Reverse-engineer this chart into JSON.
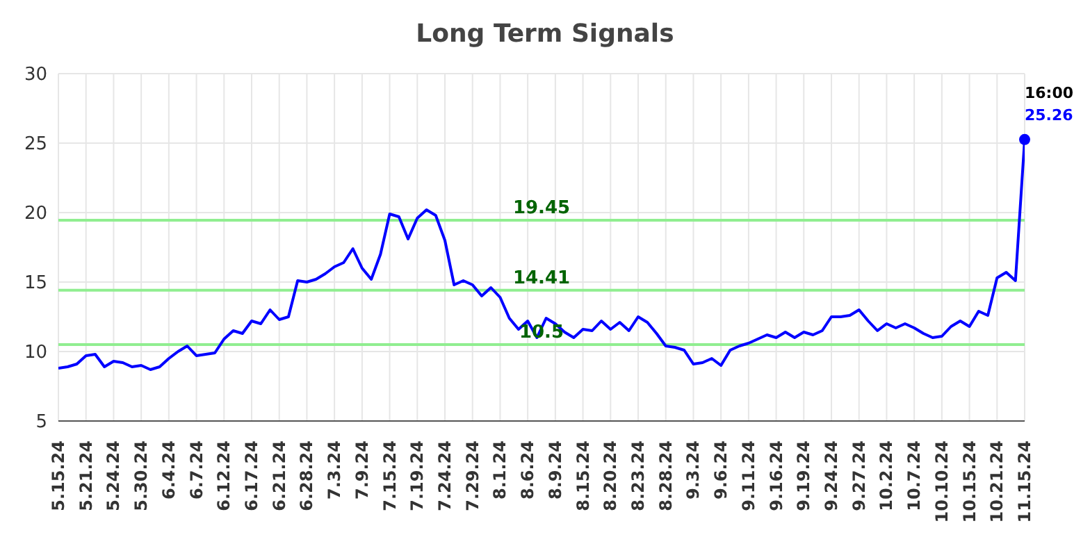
{
  "chart_data": {
    "type": "line",
    "title": "Long Term Signals",
    "categories": [
      "5.15.24",
      null,
      null,
      "5.21.24",
      null,
      null,
      "5.24.24",
      null,
      null,
      "5.30.24",
      null,
      null,
      "6.4.24",
      null,
      null,
      "6.7.24",
      null,
      null,
      "6.12.24",
      null,
      null,
      "6.17.24",
      null,
      null,
      "6.21.24",
      null,
      null,
      "6.28.24",
      null,
      null,
      "7.3.24",
      null,
      null,
      "7.9.24",
      null,
      null,
      "7.15.24",
      null,
      null,
      "7.19.24",
      null,
      null,
      "7.24.24",
      null,
      null,
      "7.29.24",
      null,
      null,
      "8.1.24",
      null,
      null,
      "8.6.24",
      null,
      null,
      "8.9.24",
      null,
      null,
      "8.15.24",
      null,
      null,
      "8.20.24",
      null,
      null,
      "8.23.24",
      null,
      null,
      "8.28.24",
      null,
      null,
      "9.3.24",
      null,
      null,
      "9.6.24",
      null,
      null,
      "9.11.24",
      null,
      null,
      "9.16.24",
      null,
      null,
      "9.19.24",
      null,
      null,
      "9.24.24",
      null,
      null,
      "9.27.24",
      null,
      null,
      "10.2.24",
      null,
      null,
      "10.7.24",
      null,
      null,
      "10.10.24",
      null,
      null,
      "10.15.24",
      null,
      null,
      "10.21.24",
      null,
      null,
      "11.15.24"
    ],
    "series": [
      {
        "color": "#0000ff",
        "values": [
          8.8,
          8.9,
          9.1,
          9.7,
          9.8,
          8.9,
          9.3,
          9.2,
          8.9,
          9.0,
          8.7,
          8.9,
          9.5,
          10.0,
          10.4,
          9.7,
          9.8,
          9.9,
          10.9,
          11.5,
          11.3,
          12.2,
          12.0,
          13.0,
          12.3,
          12.5,
          15.1,
          15.0,
          15.2,
          15.6,
          16.1,
          16.4,
          17.4,
          16.0,
          15.2,
          17.0,
          19.9,
          19.7,
          18.1,
          19.6,
          20.2,
          19.8,
          18.0,
          14.8,
          15.1,
          14.8,
          14.0,
          14.6,
          13.9,
          12.4,
          11.6,
          12.2,
          11.0,
          12.4,
          12.0,
          11.4,
          11.0,
          11.6,
          11.5,
          12.2,
          11.6,
          12.1,
          11.5,
          12.5,
          12.1,
          11.3,
          10.4,
          10.3,
          10.1,
          9.1,
          9.2,
          9.5,
          9.0,
          10.1,
          10.4,
          10.6,
          10.9,
          11.2,
          11.0,
          11.4,
          11.0,
          11.4,
          11.2,
          11.5,
          12.5,
          12.5,
          12.6,
          13.0,
          12.2,
          11.5,
          12.0,
          11.7,
          12.0,
          11.7,
          11.3,
          11.0,
          11.1,
          11.8,
          12.2,
          11.8,
          12.9,
          12.6,
          15.3,
          15.7,
          15.1,
          25.26
        ],
        "value_labels": [
          null,
          null,
          null,
          null,
          null,
          null,
          null,
          null,
          null,
          null,
          null,
          null,
          null,
          null,
          null,
          null,
          null,
          null,
          null,
          null,
          null,
          null,
          null,
          null,
          null,
          null,
          null,
          null,
          null,
          null,
          null,
          null,
          null,
          null,
          null,
          null,
          null,
          null,
          null,
          null,
          null,
          null,
          null,
          null,
          null,
          null,
          null,
          null,
          null,
          null,
          null,
          null,
          null,
          null,
          null,
          null,
          null,
          null,
          null,
          null,
          null,
          null,
          null,
          null,
          null,
          null,
          null,
          null,
          null,
          null,
          null,
          null,
          null,
          null,
          null,
          null,
          null,
          null,
          null,
          null,
          null,
          null,
          null,
          null,
          null,
          null,
          null,
          null,
          null,
          null,
          null,
          null,
          null,
          null,
          null,
          null,
          null,
          null,
          null,
          null,
          null,
          null,
          null,
          null,
          null,
          "25.26"
        ]
      }
    ],
    "annotations": [
      {
        "text": "16:00",
        "x": "11.15.24",
        "y": 25.26
      }
    ],
    "ylim": [
      5,
      30
    ],
    "yticks": [
      5,
      10,
      15,
      20,
      25,
      30
    ],
    "grid": true,
    "ref_lines": [
      {
        "axis": "y",
        "value": 19.45,
        "label": "19.45",
        "color": "#90ee90"
      },
      {
        "axis": "y",
        "value": 14.41,
        "label": "14.41",
        "color": "#90ee90"
      },
      {
        "axis": "y",
        "value": 10.5,
        "label": "10.5",
        "color": "#90ee90"
      }
    ]
  }
}
